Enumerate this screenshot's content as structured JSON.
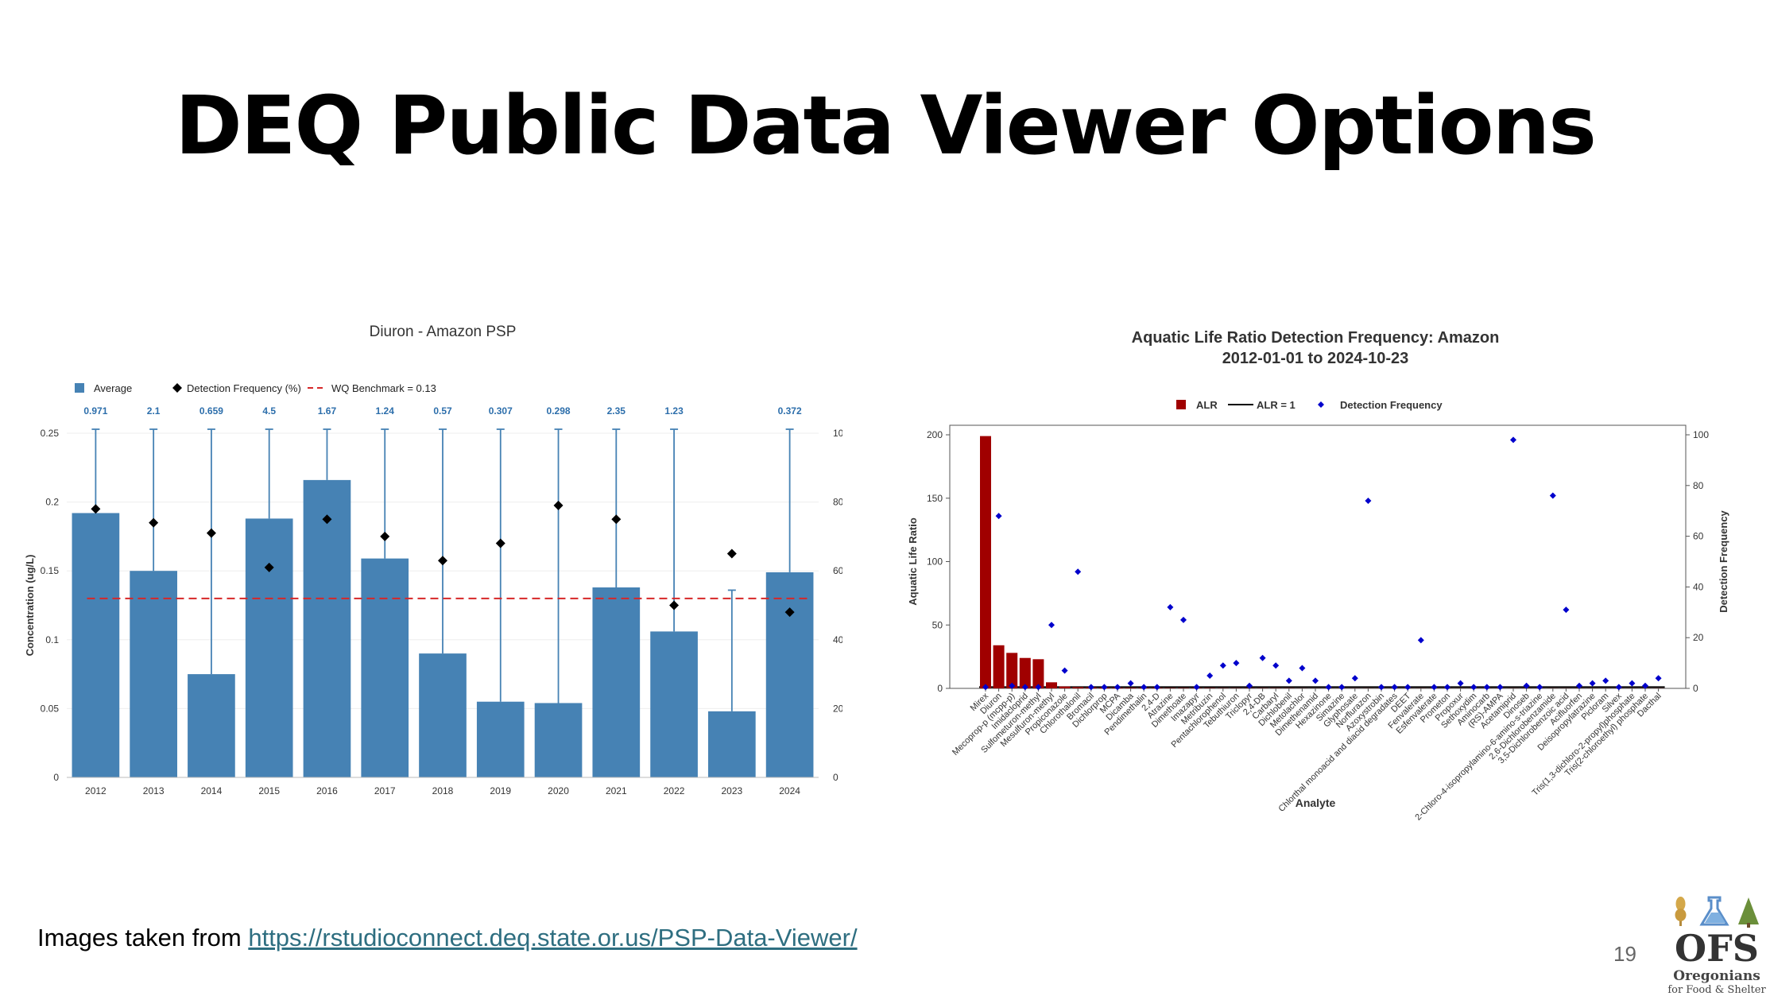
{
  "slide": {
    "title": "DEQ Public Data Viewer Options",
    "footer_prefix": "Images taken from ",
    "footer_link": "https://rstudioconnect.deq.state.or.us/PSP-Data-Viewer/",
    "page_number": "19",
    "logo_text": "OFS",
    "logo_sub1": "Oregonians",
    "logo_sub2": "for Food & Shelter"
  },
  "chart_data": [
    {
      "type": "bar",
      "title": "Diuron - Amazon PSP",
      "xlabel": "",
      "ylabel": "Concentration (ug/L)",
      "y2label": "Detection Frequency (%)",
      "ylim": [
        0,
        0.25
      ],
      "y2lim": [
        0,
        100
      ],
      "yticks": [
        0,
        0.05,
        0.1,
        0.15,
        0.2,
        0.25
      ],
      "y2ticks": [
        0,
        20,
        40,
        60,
        80,
        100
      ],
      "legend_position": "top-left",
      "legend": [
        "Average",
        "Detection Frequency (%)",
        "WQ Benchmark =  0.13"
      ],
      "benchmark": 0.13,
      "colors": {
        "bar": "#4682b4",
        "marker": "#000000",
        "benchmark": "#d62728",
        "max_label": "#2c6eab"
      },
      "categories": [
        "2012",
        "2013",
        "2014",
        "2015",
        "2016",
        "2017",
        "2018",
        "2019",
        "2020",
        "2021",
        "2022",
        "2023",
        "2024"
      ],
      "series": [
        {
          "name": "Average",
          "values": [
            0.192,
            0.15,
            0.075,
            0.188,
            0.216,
            0.159,
            0.09,
            0.055,
            0.054,
            0.138,
            0.106,
            0.048,
            0.149
          ]
        },
        {
          "name": "Detection Frequency (%)",
          "values": [
            78,
            74,
            71,
            61,
            75,
            70,
            63,
            68,
            79,
            75,
            50,
            65,
            48
          ]
        }
      ],
      "max_labels": [
        "0.971",
        "2.1",
        "0.659",
        "4.5",
        "1.67",
        "1.24",
        "0.57",
        "0.307",
        "0.298",
        "2.35",
        "1.23",
        "",
        "0.372"
      ],
      "error_upper_2023": 0.136
    },
    {
      "type": "bar",
      "title": "Aquatic Life Ratio Detection Frequency:  Amazon",
      "subtitle": "2012-01-01 to 2024-10-23",
      "xlabel": "Analyte",
      "ylabel": "Aquatic Life Ratio",
      "y2label": "Detection Frequency",
      "ylim": [
        0,
        200
      ],
      "y2lim": [
        0,
        100
      ],
      "yticks": [
        0,
        50,
        100,
        150,
        200
      ],
      "y2ticks": [
        0,
        20,
        40,
        60,
        80,
        100
      ],
      "legend_position": "top-center",
      "legend": [
        "ALR",
        "ALR = 1",
        "Detection Frequency"
      ],
      "colors": {
        "bar": "#a00000",
        "line": "#000000",
        "marker": "#0000cc"
      },
      "categories": [
        "Mirex",
        "Diuron",
        "Mecoprop-p (mcpp-p)",
        "Imidacloprid",
        "Sulfometuron-methyl",
        "Mesulfuron-methyl",
        "Propiconazole",
        "Chlorothalonil",
        "Bromacil",
        "Dichlorprop",
        "MCPA",
        "Dicamba",
        "Pendimethalin",
        "2,4-D",
        "Atrazine",
        "Dimethoate",
        "Imazapyr",
        "Metribuzin",
        "Pentachlorophenol",
        "Tebuthiuron",
        "Triclopyr",
        "2,4-DB",
        "Carbaryl",
        "Dichlobenil",
        "Metolachlor",
        "Dimethenamid",
        "Hexazinone",
        "Simazine",
        "Glyphosate",
        "Norflurazon",
        "Azoxystrobin",
        "Chlorthal monoacid and diacid degradates",
        "DEET",
        "Fenvalerate",
        "Esfenvalerate",
        "Prometon",
        "Propoxur",
        "Sethoxydim",
        "Aminocarb",
        "(RS)-AMPA",
        "Acetamiprid",
        "Dinoseb",
        "2-Chloro-4-isopropylamino-6-amino-s-triazine",
        "2,6-Dichlorobenzamide",
        "3,5-Dichlorobenzoic acid",
        "Acifluorfen",
        "Deisopropylatrazine",
        "Picloram",
        "Silvex",
        "Tris(1,3-dichloro-2-propyl)phosphate",
        "Tris(2-chloroethyl) phosphate",
        "Dacthal"
      ],
      "series": [
        {
          "name": "ALR",
          "values": [
            199,
            34,
            28,
            24,
            23,
            4.8,
            1.5,
            1.0,
            0.8,
            0.6,
            0.5,
            0.5,
            0.4,
            0.4,
            0.3,
            0.3,
            0.3,
            0.3,
            0.2,
            0.2,
            0.2,
            0.2,
            0.2,
            0.2,
            0.1,
            0.1,
            0.1,
            0.1,
            0.1,
            0.1,
            0.1,
            0.1,
            0.1,
            0.1,
            0.1,
            0.1,
            0.1,
            0.1,
            0.1,
            0.1,
            0.1,
            0.1,
            0.1,
            0.1,
            0.1,
            0.1,
            0.1,
            0.1,
            0.1,
            0.1,
            0.1,
            0.1
          ]
        },
        {
          "name": "Detection Frequency",
          "values": [
            0.5,
            68,
            1,
            0.5,
            0.5,
            25,
            7,
            46,
            0.5,
            0.5,
            0.5,
            2,
            0.5,
            0.5,
            32,
            27,
            0.5,
            5,
            9,
            10,
            1,
            12,
            9,
            3,
            8,
            3,
            0.5,
            0.5,
            4,
            74,
            0.5,
            0.5,
            0.5,
            19,
            0.5,
            0.5,
            2,
            0.5,
            0.5,
            0.5,
            98,
            1,
            0.5,
            76,
            31,
            1,
            2,
            3,
            0.5,
            2,
            1,
            4
          ]
        }
      ]
    }
  ]
}
